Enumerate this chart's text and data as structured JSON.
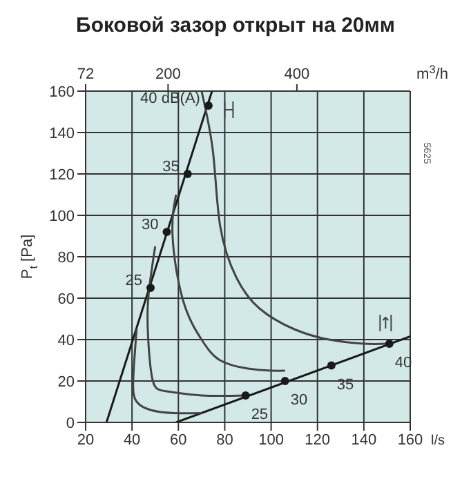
{
  "chart_data": {
    "type": "line",
    "title": "Боковой зазор открыт на 20мм",
    "xlabel": "l/s",
    "ylabel": "P$_{t}$ [Pa]",
    "x2label": "m$^{3}$/h",
    "xlim": [
      20,
      160
    ],
    "xticks": [
      20,
      40,
      60,
      80,
      100,
      120,
      140,
      160
    ],
    "ylim": [
      0,
      160
    ],
    "yticks": [
      0,
      20,
      40,
      60,
      80,
      100,
      120,
      140,
      160
    ],
    "x2lim": [
      72,
      576
    ],
    "x2ticks": [
      72,
      200,
      400
    ],
    "grid": true,
    "marker": "none",
    "line_style": "solid",
    "annotations": [
      "5625",
      {
        "text": "25",
        "x": 48,
        "y": 65
      },
      {
        "text": "30",
        "x": 55,
        "y": 92
      },
      {
        "text": "35",
        "x": 64,
        "y": 120
      },
      {
        "text": "40 dB(A)",
        "x": 73,
        "y": 153
      },
      {
        "text": "25",
        "x": 89,
        "y": 13
      },
      {
        "text": "30",
        "x": 106,
        "y": 20
      },
      {
        "text": "35",
        "x": 126,
        "y": 27.5
      },
      {
        "text": "40",
        "x": 151,
        "y": 38
      }
    ],
    "series": [
      {
        "color": "#1a1a1a",
        "x": [
          29,
          74.5
        ],
        "values": [
          0,
          160
        ]
      },
      {
        "color": "#1a1a1a",
        "x": [
          59,
          160
        ],
        "values": [
          0,
          41.5
        ]
      },
      {
        "color": "#444444",
        "x": [
          70,
          75,
          78,
          85,
          95,
          110,
          125,
          140,
          150
        ],
        "values": [
          160,
          130,
          95,
          70,
          55,
          45,
          40,
          38,
          38
        ]
      },
      {
        "color": "#444444",
        "x": [
          59,
          57.5,
          62,
          70,
          78,
          90,
          100,
          106
        ],
        "values": [
          110,
          90,
          59,
          40,
          30,
          26,
          25,
          25
        ]
      },
      {
        "color": "#444444",
        "x": [
          50,
          47,
          47,
          49,
          55,
          70,
          89
        ],
        "values": [
          85,
          60,
          40,
          20,
          15,
          13,
          13
        ]
      },
      {
        "color": "#444444",
        "x": [
          42,
          40.5,
          42,
          48,
          58,
          70
        ],
        "values": [
          45,
          20,
          10,
          6,
          4.5,
          4.5
        ]
      },
      {
        "type": "scatter",
        "marker": "circle",
        "color": "#1a1a1a",
        "x": [
          48,
          55,
          64,
          73
        ],
        "values": [
          65,
          92,
          120,
          153
        ]
      },
      {
        "type": "scatter",
        "marker": "circle",
        "color": "#1a1a1a",
        "x": [
          89,
          106,
          126,
          151
        ],
        "values": [
          13,
          20,
          27.5,
          38
        ]
      }
    ]
  }
}
